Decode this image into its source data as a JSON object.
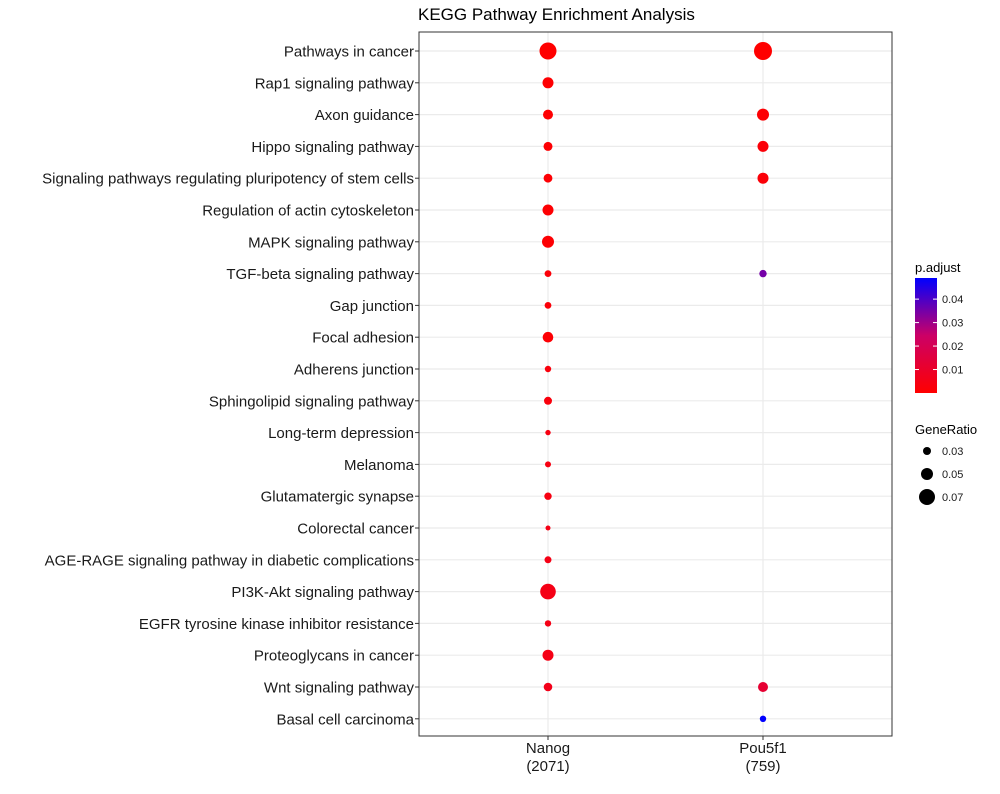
{
  "chart_data": {
    "type": "scatter",
    "title": "KEGG Pathway Enrichment Analysis",
    "xlabel": "",
    "ylabel": "",
    "grid": true,
    "x_categories": [
      "Nanog\n(2071)",
      "Pou5f1\n(759)"
    ],
    "y_categories": [
      "Pathways in cancer",
      "Rap1 signaling pathway",
      "Axon guidance",
      "Hippo signaling pathway",
      "Signaling pathways regulating pluripotency of stem cells",
      "Regulation of actin cytoskeleton",
      "MAPK signaling pathway",
      "TGF-beta signaling pathway",
      "Gap junction",
      "Focal adhesion",
      "Adherens junction",
      "Sphingolipid signaling pathway",
      "Long-term depression",
      "Melanoma",
      "Glutamatergic synapse",
      "Colorectal cancer",
      "AGE-RAGE signaling pathway in diabetic complications",
      "PI3K-Akt signaling pathway",
      "EGFR tyrosine kinase inhibitor resistance",
      "Proteoglycans in cancer",
      "Wnt signaling pathway",
      "Basal cell carcinoma"
    ],
    "points": [
      {
        "x": "Nanog\n(2071)",
        "y": "Pathways in cancer",
        "gene_ratio": 0.075,
        "p_adjust": 0.0001
      },
      {
        "x": "Nanog\n(2071)",
        "y": "Rap1 signaling pathway",
        "gene_ratio": 0.045,
        "p_adjust": 0.0005
      },
      {
        "x": "Nanog\n(2071)",
        "y": "Axon guidance",
        "gene_ratio": 0.04,
        "p_adjust": 0.0005
      },
      {
        "x": "Nanog\n(2071)",
        "y": "Hippo signaling pathway",
        "gene_ratio": 0.035,
        "p_adjust": 0.001
      },
      {
        "x": "Nanog\n(2071)",
        "y": "Signaling pathways regulating pluripotency of stem cells",
        "gene_ratio": 0.034,
        "p_adjust": 0.001
      },
      {
        "x": "Nanog\n(2071)",
        "y": "Regulation of actin cytoskeleton",
        "gene_ratio": 0.045,
        "p_adjust": 0.0008
      },
      {
        "x": "Nanog\n(2071)",
        "y": "MAPK signaling pathway",
        "gene_ratio": 0.05,
        "p_adjust": 0.0008
      },
      {
        "x": "Nanog\n(2071)",
        "y": "TGF-beta signaling pathway",
        "gene_ratio": 0.024,
        "p_adjust": 0.002
      },
      {
        "x": "Nanog\n(2071)",
        "y": "Gap junction",
        "gene_ratio": 0.024,
        "p_adjust": 0.002
      },
      {
        "x": "Nanog\n(2071)",
        "y": "Focal adhesion",
        "gene_ratio": 0.043,
        "p_adjust": 0.001
      },
      {
        "x": "Nanog\n(2071)",
        "y": "Adherens junction",
        "gene_ratio": 0.022,
        "p_adjust": 0.003
      },
      {
        "x": "Nanog\n(2071)",
        "y": "Sphingolipid signaling pathway",
        "gene_ratio": 0.03,
        "p_adjust": 0.003
      },
      {
        "x": "Nanog\n(2071)",
        "y": "Long-term depression",
        "gene_ratio": 0.017,
        "p_adjust": 0.004
      },
      {
        "x": "Nanog\n(2071)",
        "y": "Melanoma",
        "gene_ratio": 0.02,
        "p_adjust": 0.004
      },
      {
        "x": "Nanog\n(2071)",
        "y": "Glutamatergic synapse",
        "gene_ratio": 0.027,
        "p_adjust": 0.004
      },
      {
        "x": "Nanog\n(2071)",
        "y": "Colorectal cancer",
        "gene_ratio": 0.015,
        "p_adjust": 0.005
      },
      {
        "x": "Nanog\n(2071)",
        "y": "AGE-RAGE signaling pathway in diabetic complications",
        "gene_ratio": 0.025,
        "p_adjust": 0.005
      },
      {
        "x": "Nanog\n(2071)",
        "y": "PI3K-Akt signaling pathway",
        "gene_ratio": 0.068,
        "p_adjust": 0.005
      },
      {
        "x": "Nanog\n(2071)",
        "y": "EGFR tyrosine kinase inhibitor resistance",
        "gene_ratio": 0.022,
        "p_adjust": 0.005
      },
      {
        "x": "Nanog\n(2071)",
        "y": "Proteoglycans in cancer",
        "gene_ratio": 0.045,
        "p_adjust": 0.005
      },
      {
        "x": "Nanog\n(2071)",
        "y": "Wnt signaling pathway",
        "gene_ratio": 0.033,
        "p_adjust": 0.006
      },
      {
        "x": "Pou5f1\n(759)",
        "y": "Pathways in cancer",
        "gene_ratio": 0.08,
        "p_adjust": 0.0001
      },
      {
        "x": "Pou5f1\n(759)",
        "y": "Axon guidance",
        "gene_ratio": 0.05,
        "p_adjust": 0.001
      },
      {
        "x": "Pou5f1\n(759)",
        "y": "Hippo signaling pathway",
        "gene_ratio": 0.045,
        "p_adjust": 0.002
      },
      {
        "x": "Pou5f1\n(759)",
        "y": "Signaling pathways regulating pluripotency of stem cells",
        "gene_ratio": 0.045,
        "p_adjust": 0.002
      },
      {
        "x": "Pou5f1\n(759)",
        "y": "TGF-beta signaling pathway",
        "gene_ratio": 0.027,
        "p_adjust": 0.035
      },
      {
        "x": "Pou5f1\n(759)",
        "y": "Wnt signaling pathway",
        "gene_ratio": 0.04,
        "p_adjust": 0.012
      },
      {
        "x": "Pou5f1\n(759)",
        "y": "Basal cell carcinoma",
        "gene_ratio": 0.022,
        "p_adjust": 0.049
      }
    ],
    "color_legend": {
      "title": "p.adjust",
      "ticks": [
        0.04,
        0.03,
        0.02,
        0.01
      ],
      "range": [
        0.0,
        0.049
      ],
      "low_color": "#ff0000",
      "high_color": "#0000ff"
    },
    "size_legend": {
      "title": "GeneRatio",
      "values": [
        0.03,
        0.05,
        0.07
      ]
    },
    "legend_position": "right",
    "colors": {
      "grid": "#ebebeb",
      "panel_border": "#333333",
      "text": "#000000"
    }
  }
}
